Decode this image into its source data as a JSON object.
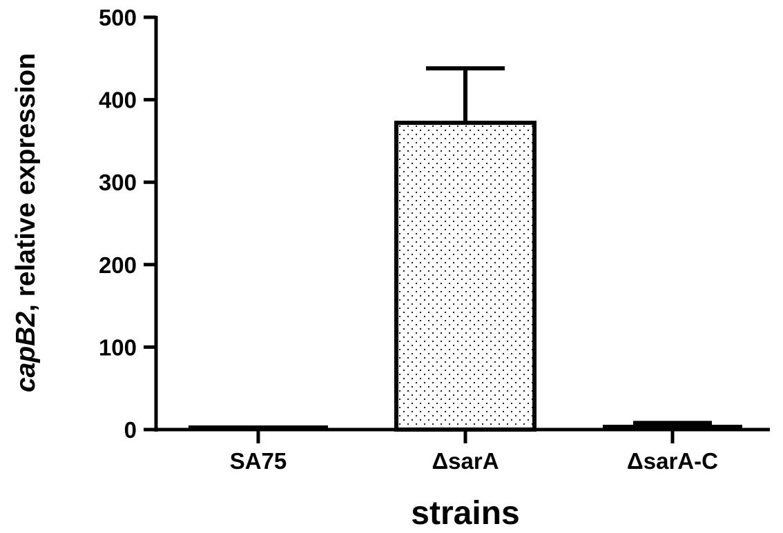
{
  "chart_data": {
    "type": "bar",
    "title": "",
    "xlabel": "strains",
    "ylabel_italic": "capB2",
    "ylabel_rest": ", relative expression",
    "categories": [
      "SA75",
      "ΔsarA",
      "ΔsarA-C"
    ],
    "series": [
      {
        "values": [
          1,
          372,
          5
        ],
        "error_upper": [
          0,
          66,
          3
        ],
        "fill_patterns": [
          "solid",
          "dots",
          "solid"
        ]
      }
    ],
    "ylim": [
      0,
      500
    ],
    "yticks": [
      "0",
      "100",
      "200",
      "300",
      "400",
      "500"
    ],
    "ytick_values": [
      0,
      100,
      200,
      300,
      400,
      500
    ],
    "grid": false,
    "legend": "none",
    "colors": {
      "bar_outline": "#000000",
      "bar_fill": "#ffffff",
      "dot_fill": "#000000",
      "axis": "#000000"
    }
  }
}
